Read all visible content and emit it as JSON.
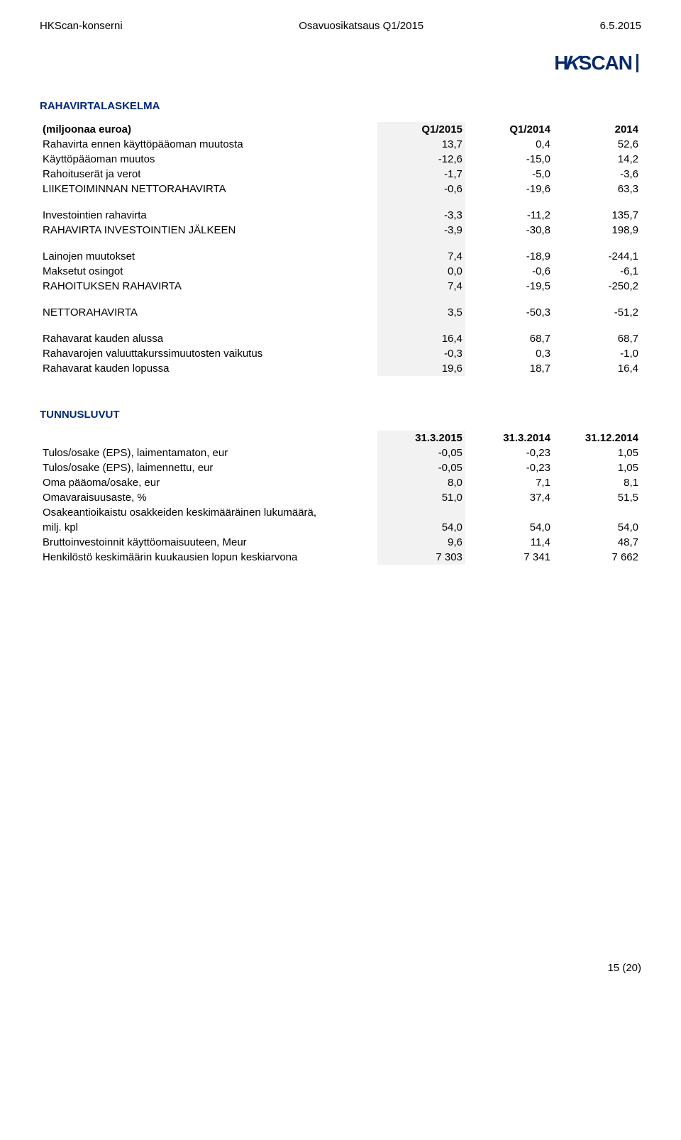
{
  "header": {
    "left": "HKScan-konserni",
    "center": "Osavuosikatsaus Q1/2015",
    "right": "6.5.2015"
  },
  "logo": "HKSCAN",
  "cashflow": {
    "title": "RAHAVIRTALASKELMA",
    "columns": [
      "(miljoonaa euroa)",
      "Q1/2015",
      "Q1/2014",
      "2014"
    ],
    "rows": [
      {
        "label": "Rahavirta ennen käyttöpääoman muutosta",
        "c1": "13,7",
        "c2": "0,4",
        "c3": "52,6",
        "bold": false
      },
      {
        "label": "Käyttöpääoman muutos",
        "c1": "-12,6",
        "c2": "-15,0",
        "c3": "14,2",
        "bold": false
      },
      {
        "label": "Rahoituserät ja verot",
        "c1": "-1,7",
        "c2": "-5,0",
        "c3": "-3,6",
        "bold": false
      },
      {
        "label": "LIIKETOIMINNAN NETTORAHAVIRTA",
        "c1": "-0,6",
        "c2": "-19,6",
        "c3": "63,3",
        "bold": false
      }
    ],
    "invest": [
      {
        "label": "Investointien rahavirta",
        "c1": "-3,3",
        "c2": "-11,2",
        "c3": "135,7",
        "bold": false
      },
      {
        "label": "RAHAVIRTA INVESTOINTIEN JÄLKEEN",
        "c1": "-3,9",
        "c2": "-30,8",
        "c3": "198,9",
        "bold": false
      }
    ],
    "finance": [
      {
        "label": "Lainojen muutokset",
        "c1": "7,4",
        "c2": "-18,9",
        "c3": "-244,1",
        "bold": false
      },
      {
        "label": "Maksetut osingot",
        "c1": "0,0",
        "c2": "-0,6",
        "c3": "-6,1",
        "bold": false
      },
      {
        "label": "RAHOITUKSEN RAHAVIRTA",
        "c1": "7,4",
        "c2": "-19,5",
        "c3": "-250,2",
        "bold": false
      }
    ],
    "net": [
      {
        "label": "NETTORAHAVIRTA",
        "c1": "3,5",
        "c2": "-50,3",
        "c3": "-51,2",
        "bold": false
      }
    ],
    "end": [
      {
        "label": "Rahavarat kauden alussa",
        "c1": "16,4",
        "c2": "68,7",
        "c3": "68,7",
        "bold": false
      },
      {
        "label": "Rahavarojen valuuttakurssimuutosten vaikutus",
        "c1": "-0,3",
        "c2": "0,3",
        "c3": "-1,0",
        "bold": false
      },
      {
        "label": "Rahavarat kauden lopussa",
        "c1": "19,6",
        "c2": "18,7",
        "c3": "16,4",
        "bold": false
      }
    ]
  },
  "ratios": {
    "title": "TUNNUSLUVUT",
    "columns": [
      "",
      "31.3.2015",
      "31.3.2014",
      "31.12.2014"
    ],
    "rows": [
      {
        "label": "Tulos/osake (EPS), laimentamaton, eur",
        "c1": "-0,05",
        "c2": "-0,23",
        "c3": "1,05"
      },
      {
        "label": "Tulos/osake (EPS), laimennettu, eur",
        "c1": "-0,05",
        "c2": "-0,23",
        "c3": "1,05"
      },
      {
        "label": "Oma pääoma/osake, eur",
        "c1": "8,0",
        "c2": "7,1",
        "c3": "8,1"
      },
      {
        "label": "Omavaraisuusaste, %",
        "c1": "51,0",
        "c2": "37,4",
        "c3": "51,5"
      }
    ],
    "multirow": {
      "label1": "Osakeantioikaistu osakkeiden keskimääräinen lukumäärä,",
      "label2": "milj. kpl",
      "c1": "54,0",
      "c2": "54,0",
      "c3": "54,0"
    },
    "tail": [
      {
        "label": "Bruttoinvestoinnit käyttöomaisuuteen, Meur",
        "c1": "9,6",
        "c2": "11,4",
        "c3": "48,7"
      },
      {
        "label": "Henkilöstö keskimäärin kuukausien lopun keskiarvona",
        "c1": "7 303",
        "c2": "7 341",
        "c3": "7 662"
      }
    ]
  },
  "footer": "15 (20)",
  "styling": {
    "text_color": "#000000",
    "heading_color": "#002878",
    "shade_color": "#f2f2f2",
    "background": "#ffffff",
    "font_size_body": 15,
    "font_size_logo": 28,
    "logo_color": "#0a2a6a"
  }
}
